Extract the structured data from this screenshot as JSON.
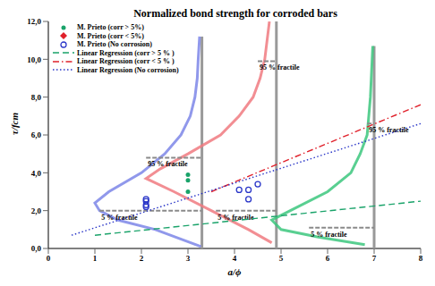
{
  "chart_data": {
    "type": "scatter",
    "title": "Normalized bond strength for corroded bars",
    "x_label": "a/ϕ",
    "y_label": "τ/fcm",
    "xlim": [
      0,
      8
    ],
    "xticks": [
      0,
      1,
      2,
      3,
      4,
      5,
      6,
      7,
      8
    ],
    "ylim": [
      0,
      12
    ],
    "yticks": [
      {
        "value": 0,
        "label": "0,0"
      },
      {
        "value": 2,
        "label": "2,0"
      },
      {
        "value": 4,
        "label": "4,0"
      },
      {
        "value": 6,
        "label": "6,0"
      },
      {
        "value": 8,
        "label": "8,0"
      },
      {
        "value": 10,
        "label": "10,0"
      },
      {
        "value": 12,
        "label": "12,0"
      }
    ],
    "grid": false,
    "legend": "upper left",
    "series": [
      {
        "name": "M. Prieto (corr > 5%)",
        "type": "scatter",
        "color": "#1aa36a",
        "marker": "circle",
        "x": [
          3,
          3,
          3
        ],
        "values": [
          3.9,
          3.6,
          3.0
        ]
      },
      {
        "name": "M. Prieto (corr < 5%)",
        "type": "scatter",
        "color": "#e0202a",
        "marker": "diamond",
        "x": [],
        "values": []
      },
      {
        "name": "M. Prieto (No corrosion)",
        "type": "scatter",
        "color": "#2a36c8",
        "marker": "open_circle",
        "x": [
          2.1,
          2.1,
          2.1,
          2.1,
          4.1,
          4.3,
          4.3,
          4.5
        ],
        "values": [
          2.6,
          2.5,
          2.3,
          2.2,
          3.1,
          3.1,
          2.6,
          3.4
        ]
      },
      {
        "name": "Linear Regression (corr > 5 % )",
        "type": "line",
        "color": "#1aa36a",
        "line_style": "dashed",
        "x": [
          1,
          8
        ],
        "values": [
          0.7,
          2.5
        ]
      },
      {
        "name": "Linear Regression (corr < 5 % )",
        "type": "line",
        "color": "#e0202a",
        "line_style": "dashdot",
        "x": [
          3.5,
          8
        ],
        "values": [
          3.0,
          7.6
        ]
      },
      {
        "name": "Linear Regression (No corrosion)",
        "type": "line",
        "color": "#2a36c8",
        "line_style": "dotted",
        "x": [
          0.5,
          8
        ],
        "values": [
          0.7,
          6.6
        ]
      }
    ],
    "distributions": [
      {
        "color": "#7d86e8",
        "x": [
          3.28,
          2.3,
          1.5,
          1.1,
          1.0,
          1.3,
          2.0,
          2.5,
          2.85,
          3.05,
          3.15,
          3.2,
          3.22,
          3.25
        ],
        "values": [
          0.1,
          1.0,
          1.5,
          2.0,
          2.4,
          3.0,
          4.0,
          5.0,
          6.0,
          7.0,
          8.0,
          9.0,
          10.0,
          11.2
        ],
        "axis_line": {
          "x": 3.3,
          "y": [
            0,
            11.2
          ]
        }
      },
      {
        "color": "#f07a80",
        "x": [
          4.8,
          4.3,
          3.5,
          2.7,
          2.1,
          2.4,
          3.0,
          3.7,
          4.1,
          4.4,
          4.55,
          4.65,
          4.7,
          4.75
        ],
        "values": [
          0.3,
          1.0,
          2.0,
          3.0,
          3.7,
          4.2,
          5.0,
          6.0,
          7.0,
          8.0,
          9.0,
          10.0,
          11.0,
          12.0
        ],
        "axis_line": {
          "x": 4.9,
          "y": [
            0,
            12
          ]
        }
      },
      {
        "color": "#3cc77e",
        "x": [
          6.8,
          5.8,
          5.0,
          4.8,
          5.2,
          6.0,
          6.5,
          6.7,
          6.85,
          6.92,
          6.97
        ],
        "values": [
          0.2,
          0.6,
          1.0,
          1.5,
          2.0,
          3.0,
          4.0,
          5.0,
          6.0,
          8.0,
          10.7
        ],
        "axis_line": {
          "x": 7,
          "y": [
            0,
            10.7
          ]
        }
      }
    ],
    "fractiles": [
      {
        "label": "95 % fractile",
        "y": 4.8,
        "x": [
          2.1,
          3.3
        ],
        "color": "#8a8a8a"
      },
      {
        "label": "5 % fractile",
        "y": 2.0,
        "x": [
          1.1,
          3.3
        ],
        "color": "#8a8a8a"
      },
      {
        "label": "95 % fractile",
        "y": 9.9,
        "x": [
          4.5,
          4.9
        ],
        "color": "#8a8a8a"
      },
      {
        "label": "5 % fractile",
        "y": 2.0,
        "x": [
          3.6,
          4.9
        ],
        "color": "#8a8a8a"
      },
      {
        "label": "95 % fractile",
        "y": 6.6,
        "x": [
          6.85,
          7.0
        ],
        "color": "#8a8a8a"
      },
      {
        "label": "5 % fractile",
        "y": 1.1,
        "x": [
          5.6,
          7.0
        ],
        "color": "#8a8a8a"
      }
    ]
  }
}
